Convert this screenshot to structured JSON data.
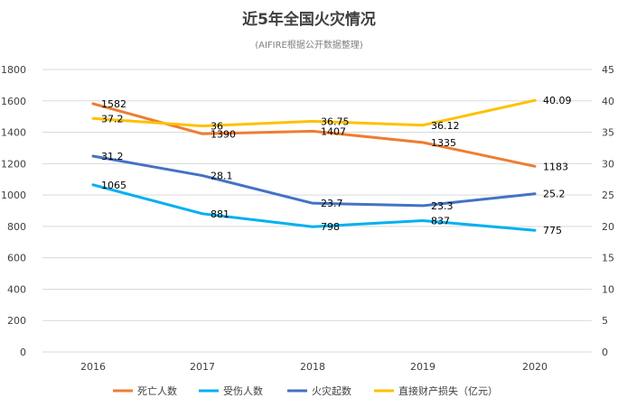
{
  "chart_data": {
    "type": "line",
    "title": "近5年全国火灾情况",
    "subtitle": "(AIFIRE根据公开数据整理)",
    "categories": [
      "2016",
      "2017",
      "2018",
      "2019",
      "2020"
    ],
    "y_left": {
      "ylim": [
        0,
        1800
      ],
      "ticks": [
        "0",
        "200",
        "400",
        "600",
        "800",
        "1000",
        "1200",
        "1400",
        "1600",
        "1800"
      ]
    },
    "y_right": {
      "ylim": [
        0,
        45
      ],
      "ticks": [
        "0",
        "5",
        "10",
        "15",
        "20",
        "25",
        "30",
        "35",
        "40",
        "45"
      ]
    },
    "grid": true,
    "legend_position": "bottom",
    "series": [
      {
        "name": "死亡人数",
        "axis": "left",
        "color": "#ed7d31",
        "values": [
          1582,
          1390,
          1407,
          1335,
          1183
        ],
        "labels": [
          "1582",
          "1390",
          "1407",
          "1335",
          "1183"
        ]
      },
      {
        "name": "受伤人数",
        "axis": "left",
        "color": "#00b0f0",
        "values": [
          1065,
          881,
          798,
          837,
          775
        ],
        "labels": [
          "1065",
          "881",
          "798",
          "837",
          "775"
        ]
      },
      {
        "name": "火灾起数",
        "axis": "right",
        "color": "#4472c4",
        "values": [
          31.2,
          28.1,
          23.7,
          23.3,
          25.2
        ],
        "labels": [
          "31.2",
          "28.1",
          "23.7",
          "23.3",
          "25.2"
        ]
      },
      {
        "name": "直接财产损失（亿元）",
        "axis": "right",
        "color": "#ffc000",
        "values": [
          37.2,
          36,
          36.75,
          36.12,
          40.09
        ],
        "labels": [
          "37.2",
          "36",
          "36.75",
          "36.12",
          "40.09"
        ]
      }
    ]
  }
}
